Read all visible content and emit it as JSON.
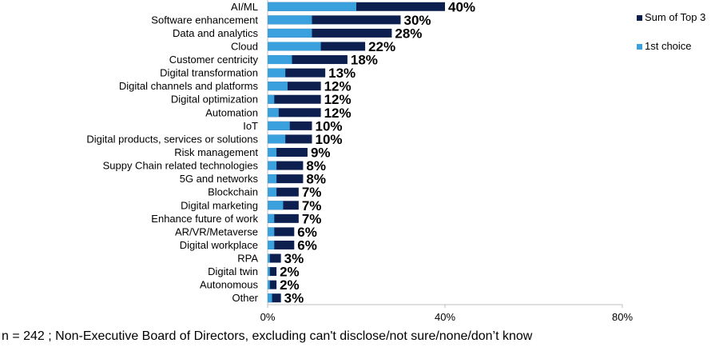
{
  "chart_data": {
    "type": "bar",
    "orientation": "horizontal",
    "categories": [
      "AI/ML",
      "Software enhancement",
      "Data and analytics",
      "Cloud",
      "Customer centricity",
      "Digital transformation",
      "Digital channels and platforms",
      "Digital optimization",
      "Automation",
      "IoT",
      "Digital products, services or solutions",
      "Risk management",
      "Suppy Chain related technologies",
      "5G and networks",
      "Blockchain",
      "Digital marketing",
      "Enhance future of work",
      "AR/VR/Metaverse",
      "Digital workplace",
      "RPA",
      "Digital twin",
      "Autonomous",
      "Other"
    ],
    "series": [
      {
        "name": "Sum of Top 3",
        "color": "#0d1f4f",
        "values": [
          40,
          30,
          28,
          22,
          18,
          13,
          12,
          12,
          12,
          10,
          10,
          9,
          8,
          8,
          7,
          7,
          7,
          6,
          6,
          3,
          2,
          2,
          3
        ]
      },
      {
        "name": "1st choice",
        "color": "#3aa0de",
        "values": [
          20,
          10,
          10,
          12,
          5.5,
          4,
          4.5,
          1.5,
          2.5,
          5,
          4,
          2,
          2,
          2,
          2,
          3.5,
          1.5,
          1.5,
          1.5,
          0.5,
          0.5,
          0.5,
          1
        ]
      }
    ],
    "value_labels": [
      "40%",
      "30%",
      "28%",
      "22%",
      "18%",
      "13%",
      "12%",
      "12%",
      "12%",
      "10%",
      "10%",
      "9%",
      "8%",
      "8%",
      "7%",
      "7%",
      "7%",
      "6%",
      "6%",
      "3%",
      "2%",
      "2%",
      "3%"
    ],
    "xlim": [
      0,
      80
    ],
    "x_ticks": [
      0,
      40,
      80
    ],
    "x_tick_labels": [
      "0%",
      "40%",
      "80%"
    ],
    "grid": false,
    "legend_position": "top-right",
    "title": "",
    "xlabel": "",
    "ylabel": ""
  },
  "footnote": "n = 242 ; Non-Executive Board of Directors, excluding can't disclose/not sure/none/don’t know"
}
